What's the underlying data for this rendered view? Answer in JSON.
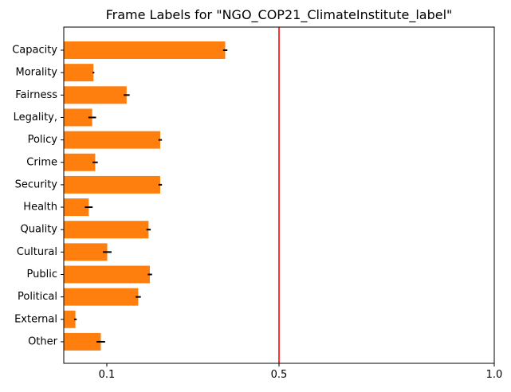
{
  "chart_data": {
    "type": "bar",
    "orientation": "horizontal",
    "title": "Frame Labels for \"NGO_COP21_ClimateInstitute_label\"",
    "xlabel": "",
    "ylabel": "",
    "xlim": [
      0,
      1.0
    ],
    "xticks": [
      {
        "value": 0.1,
        "label": "0.1"
      },
      {
        "value": 0.5,
        "label": "0.5"
      },
      {
        "value": 1.0,
        "label": "1.0"
      }
    ],
    "grid": false,
    "bar_color": "#ff7f0e",
    "error_color": "#000000",
    "reference_line": {
      "value": 0.5,
      "color": "#ff0000"
    },
    "categories": [
      "Capacity",
      "Morality",
      "Fairness",
      "Legality,",
      "Policy",
      "Crime",
      "Security",
      "Health",
      "Quality",
      "Cultural",
      "Public",
      "Political",
      "External",
      "Other"
    ],
    "values": [
      0.375,
      0.069,
      0.146,
      0.066,
      0.224,
      0.073,
      0.224,
      0.058,
      0.197,
      0.101,
      0.2,
      0.173,
      0.027,
      0.086
    ],
    "errors": [
      0.005,
      0.002,
      0.007,
      0.009,
      0.004,
      0.006,
      0.004,
      0.009,
      0.005,
      0.01,
      0.005,
      0.006,
      0.003,
      0.01
    ]
  }
}
